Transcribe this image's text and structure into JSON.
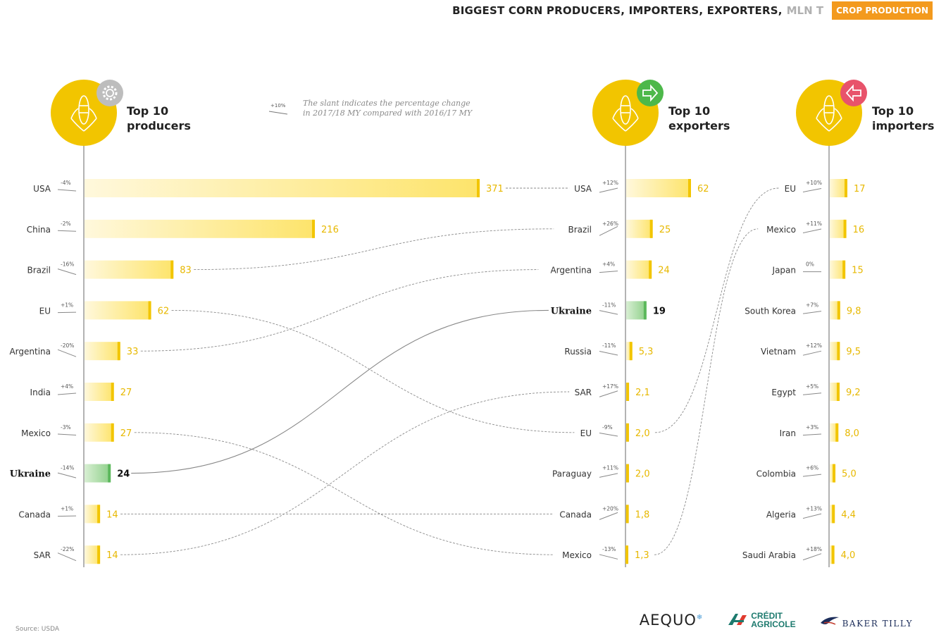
{
  "header": {
    "title": "BIGGEST CORN PRODUCERS, IMPORTERS, EXPORTERS,",
    "unit": "MLN T",
    "badge": "CROP PRODUCTION"
  },
  "legend": {
    "sample_change": "+10%",
    "note_line1": "The slant indicates the percentage change",
    "note_line2": "in 2017/18 MY compared with 2016/17 MY"
  },
  "colors": {
    "yellow": "#f2c500",
    "yellow_light": "#fdf3c0",
    "green": "#5cb85c",
    "green_light": "#c9e8c3",
    "gear_badge": "#bdbdbd",
    "export_badge": "#4db84a",
    "import_badge": "#e8536b",
    "value_text": "#e7b800"
  },
  "chart_data": [
    {
      "type": "bar",
      "panel": "producers",
      "title_line1": "Top 10",
      "title_line2": "producers",
      "icon": "gear-icon",
      "categories": [
        "USA",
        "China",
        "Brazil",
        "EU",
        "Argentina",
        "India",
        "Mexico",
        "Ukraine",
        "Canada",
        "SAR"
      ],
      "values": [
        371,
        216,
        83,
        62,
        33,
        27,
        27,
        24,
        14,
        14
      ],
      "value_labels": [
        "371",
        "216",
        "83",
        "62",
        "33",
        "27",
        "27",
        "24",
        "14",
        "14"
      ],
      "changes": [
        "-4%",
        "-2%",
        "-16%",
        "+1%",
        "-20%",
        "+4%",
        "-3%",
        "-14%",
        "+1%",
        "-22%"
      ],
      "change_values": [
        -4,
        -2,
        -16,
        1,
        -20,
        4,
        -3,
        -14,
        1,
        -22
      ],
      "highlight": "Ukraine"
    },
    {
      "type": "bar",
      "panel": "exporters",
      "title_line1": "Top 10",
      "title_line2": "exporters",
      "icon": "arrow-right-icon",
      "categories": [
        "USA",
        "Brazil",
        "Argentina",
        "Ukraine",
        "Russia",
        "SAR",
        "EU",
        "Paraguay",
        "Canada",
        "Mexico"
      ],
      "values": [
        62,
        25,
        24,
        19,
        5.3,
        2.1,
        2.0,
        2.0,
        1.8,
        1.3
      ],
      "value_labels": [
        "62",
        "25",
        "24",
        "19",
        "5,3",
        "2,1",
        "2,0",
        "2,0",
        "1,8",
        "1,3"
      ],
      "changes": [
        "+12%",
        "+26%",
        "+4%",
        "-11%",
        "-11%",
        "+17%",
        "-9%",
        "+11%",
        "+20%",
        "-13%"
      ],
      "change_values": [
        12,
        26,
        4,
        -11,
        -11,
        17,
        -9,
        11,
        20,
        -13
      ],
      "highlight": "Ukraine"
    },
    {
      "type": "bar",
      "panel": "importers",
      "title_line1": "Top 10",
      "title_line2": "importers",
      "icon": "arrow-left-icon",
      "categories": [
        "EU",
        "Mexico",
        "Japan",
        "South Korea",
        "Vietnam",
        "Egypt",
        "Iran",
        "Colombia",
        "Algeria",
        "Saudi Arabia"
      ],
      "values": [
        17,
        16,
        15,
        9.8,
        9.5,
        9.2,
        8.0,
        5.0,
        4.4,
        4.0
      ],
      "value_labels": [
        "17",
        "16",
        "15",
        "9,8",
        "9,5",
        "9,2",
        "8,0",
        "5,0",
        "4,4",
        "4,0"
      ],
      "changes": [
        "+10%",
        "+11%",
        "0%",
        "+7%",
        "+12%",
        "+5%",
        "+3%",
        "+6%",
        "+13%",
        "+18%"
      ],
      "change_values": [
        10,
        11,
        0,
        7,
        12,
        5,
        3,
        6,
        13,
        18
      ],
      "highlight": ""
    }
  ],
  "footer": {
    "source": "Source: USDA",
    "logo_aequo": "AEQUO",
    "logo_ca_line1": "CRÉDIT",
    "logo_ca_line2": "AGRICOLE",
    "logo_bt": "BAKER TILLY"
  }
}
